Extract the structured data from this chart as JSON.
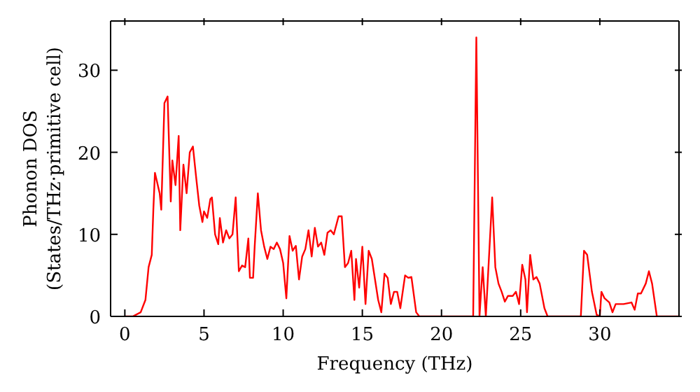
{
  "chart_data": {
    "type": "line",
    "xlabel": "Frequency (THz)",
    "ylabel": "Phonon DOS\n(States/THz·primitive cell)",
    "xlim": [
      -0.9,
      35
    ],
    "ylim": [
      0,
      36
    ],
    "xticks": [
      0,
      5,
      10,
      15,
      20,
      25,
      30
    ],
    "yticks": [
      0,
      10,
      20,
      30
    ],
    "legend": false,
    "marker": "none",
    "line_style": "solid",
    "x": [
      0,
      0.5,
      1,
      1.3,
      1.5,
      1.7,
      1.8,
      1.9,
      2.2,
      2.3,
      2.5,
      2.7,
      2.9,
      3.0,
      3.2,
      3.4,
      3.5,
      3.7,
      3.9,
      4.1,
      4.3,
      4.5,
      4.7,
      4.9,
      5.0,
      5.2,
      5.4,
      5.5,
      5.7,
      5.9,
      6.0,
      6.2,
      6.4,
      6.6,
      6.8,
      7.0,
      7.2,
      7.4,
      7.6,
      7.8,
      7.9,
      8.1,
      8.2,
      8.4,
      8.6,
      8.8,
      9.0,
      9.2,
      9.4,
      9.6,
      9.8,
      10.0,
      10.2,
      10.4,
      10.6,
      10.8,
      11.0,
      11.2,
      11.4,
      11.6,
      11.8,
      12.0,
      12.2,
      12.4,
      12.6,
      12.8,
      13.0,
      13.2,
      13.5,
      13.7,
      13.9,
      14.1,
      14.3,
      14.5,
      14.6,
      14.8,
      15.0,
      15.2,
      15.4,
      15.6,
      15.8,
      16.0,
      16.2,
      16.4,
      16.6,
      16.8,
      17.0,
      17.2,
      17.4,
      17.7,
      17.9,
      18.1,
      18.4,
      18.6,
      22.0,
      22.2,
      22.4,
      22.6,
      22.8,
      23.2,
      23.4,
      23.6,
      23.8,
      24.0,
      24.2,
      24.5,
      24.7,
      24.9,
      25.1,
      25.3,
      25.4,
      25.6,
      25.8,
      26.0,
      26.2,
      26.5,
      26.7,
      28.8,
      29.0,
      29.2,
      29.5,
      29.8,
      30.0,
      30.1,
      30.3,
      30.6,
      30.8,
      31.0,
      31.5,
      32.0,
      32.2,
      32.4,
      32.6,
      32.9,
      33.1,
      33.3,
      33.6,
      35
    ],
    "series": [
      {
        "color": "#ff0000",
        "values": [
          0,
          0,
          0.5,
          2,
          6,
          7.5,
          13,
          17.5,
          15,
          13,
          26,
          26.8,
          14,
          19,
          16,
          22,
          10.5,
          18.5,
          15,
          20,
          20.7,
          17,
          13.5,
          11.5,
          12.8,
          12,
          14.3,
          14.5,
          10,
          8.8,
          12,
          9,
          10.5,
          9.5,
          10,
          14.5,
          5.5,
          6.2,
          6,
          9.5,
          4.7,
          4.7,
          8.5,
          15,
          10.5,
          8.5,
          7,
          8.5,
          8.2,
          9,
          8.2,
          6.5,
          2.2,
          9.8,
          8,
          8.6,
          4.5,
          7.3,
          8.2,
          10.5,
          7.3,
          10.8,
          8.5,
          9,
          7.5,
          10.2,
          10.5,
          10,
          12.2,
          12.2,
          6,
          6.5,
          8,
          2,
          7,
          3.5,
          8.5,
          1.5,
          8,
          7,
          4.5,
          2,
          0.5,
          5.2,
          4.7,
          1.5,
          3,
          3,
          1,
          5,
          4.7,
          4.8,
          0.5,
          0,
          0,
          34,
          0,
          6,
          0,
          14.5,
          6,
          4,
          3,
          1.8,
          2.5,
          2.5,
          3,
          1.5,
          6.3,
          4.5,
          0.5,
          7.5,
          4.5,
          4.8,
          4,
          1,
          0,
          0,
          8,
          7.5,
          3,
          0.2,
          0,
          3,
          2.2,
          1.7,
          0.5,
          1.5,
          1.5,
          1.7,
          0.8,
          2.8,
          2.8,
          4,
          5.5,
          4,
          0,
          0
        ]
      }
    ]
  }
}
